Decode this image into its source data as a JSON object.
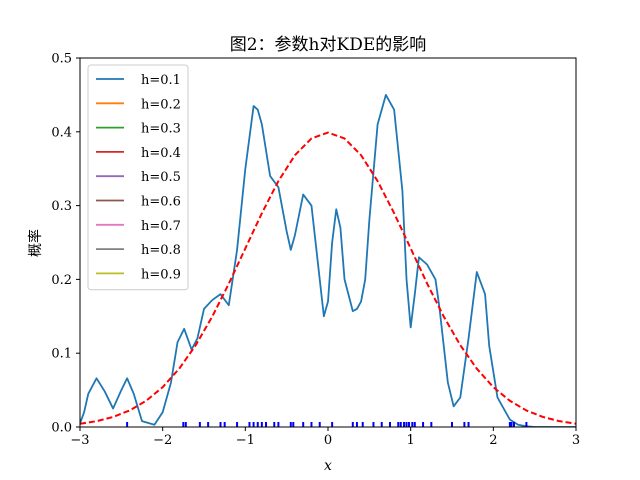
{
  "chart_data": {
    "type": "line",
    "title": "图2：参数h对KDE的影响",
    "xlabel": "x",
    "ylabel": "概率",
    "xlim": [
      -3,
      3
    ],
    "ylim": [
      0,
      0.5
    ],
    "xticks": [
      "−3",
      "−2",
      "−1",
      "0",
      "1",
      "2",
      "3"
    ],
    "yticks": [
      "0.0",
      "0.1",
      "0.2",
      "0.3",
      "0.4",
      "0.5"
    ],
    "grid": false,
    "legend_position": "top-left",
    "series": [
      {
        "name": "h=0.1",
        "color": "#1f77b4",
        "style": "solid",
        "x": [
          -3.0,
          -2.95,
          -2.9,
          -2.8,
          -2.7,
          -2.6,
          -2.5,
          -2.43,
          -2.35,
          -2.25,
          -2.1,
          -2.0,
          -1.9,
          -1.82,
          -1.74,
          -1.65,
          -1.58,
          -1.5,
          -1.4,
          -1.3,
          -1.2,
          -1.1,
          -1.0,
          -0.9,
          -0.85,
          -0.8,
          -0.7,
          -0.6,
          -0.5,
          -0.45,
          -0.4,
          -0.3,
          -0.2,
          -0.1,
          -0.05,
          0.0,
          0.05,
          0.1,
          0.15,
          0.2,
          0.3,
          0.35,
          0.4,
          0.45,
          0.5,
          0.6,
          0.7,
          0.8,
          0.9,
          0.95,
          1.0,
          1.05,
          1.1,
          1.2,
          1.3,
          1.35,
          1.45,
          1.52,
          1.6,
          1.7,
          1.8,
          1.9,
          1.95,
          2.05,
          2.2,
          2.3,
          2.4,
          2.5,
          2.6,
          2.7,
          2.8,
          2.9,
          3.0
        ],
        "y": [
          0.005,
          0.02,
          0.045,
          0.066,
          0.048,
          0.025,
          0.05,
          0.066,
          0.045,
          0.008,
          0.003,
          0.02,
          0.06,
          0.115,
          0.133,
          0.105,
          0.12,
          0.16,
          0.172,
          0.18,
          0.165,
          0.24,
          0.35,
          0.435,
          0.43,
          0.41,
          0.34,
          0.325,
          0.265,
          0.24,
          0.26,
          0.315,
          0.3,
          0.2,
          0.15,
          0.17,
          0.25,
          0.295,
          0.27,
          0.2,
          0.157,
          0.16,
          0.17,
          0.2,
          0.28,
          0.41,
          0.45,
          0.43,
          0.32,
          0.2,
          0.135,
          0.18,
          0.23,
          0.22,
          0.2,
          0.16,
          0.06,
          0.028,
          0.04,
          0.12,
          0.21,
          0.18,
          0.11,
          0.04,
          0.01,
          0.003,
          0.001,
          0.0,
          0.0,
          0.0,
          0.0,
          0.0,
          0.0
        ]
      },
      {
        "name": "h=0.2",
        "color": "#ff7f0e",
        "style": "solid",
        "x": [],
        "y": []
      },
      {
        "name": "h=0.3",
        "color": "#2ca02c",
        "style": "solid",
        "x": [],
        "y": []
      },
      {
        "name": "h=0.4",
        "color": "#d62728",
        "style": "solid",
        "x": [],
        "y": []
      },
      {
        "name": "h=0.5",
        "color": "#9467bd",
        "style": "solid",
        "x": [],
        "y": []
      },
      {
        "name": "h=0.6",
        "color": "#8c564b",
        "style": "solid",
        "x": [],
        "y": []
      },
      {
        "name": "h=0.7",
        "color": "#e377c2",
        "style": "solid",
        "x": [],
        "y": []
      },
      {
        "name": "h=0.8",
        "color": "#7f7f7f",
        "style": "solid",
        "x": [],
        "y": []
      },
      {
        "name": "h=0.9",
        "color": "#bcbd22",
        "style": "solid",
        "x": [],
        "y": []
      }
    ],
    "reference_curve": {
      "color": "#ff0000",
      "style": "dashed",
      "x": [
        -3.0,
        -2.8,
        -2.6,
        -2.4,
        -2.2,
        -2.0,
        -1.8,
        -1.6,
        -1.4,
        -1.2,
        -1.0,
        -0.8,
        -0.6,
        -0.4,
        -0.2,
        0.0,
        0.2,
        0.4,
        0.6,
        0.8,
        1.0,
        1.2,
        1.4,
        1.6,
        1.8,
        2.0,
        2.2,
        2.4,
        2.6,
        2.8,
        3.0
      ],
      "y": [
        0.0044,
        0.0079,
        0.0136,
        0.0224,
        0.0355,
        0.054,
        0.079,
        0.1109,
        0.1497,
        0.1942,
        0.242,
        0.2897,
        0.3332,
        0.3683,
        0.391,
        0.3989,
        0.391,
        0.3683,
        0.3332,
        0.2897,
        0.242,
        0.1942,
        0.1497,
        0.1109,
        0.079,
        0.054,
        0.0355,
        0.0224,
        0.0136,
        0.0079,
        0.0044
      ]
    },
    "rug": {
      "color": "#0000ff",
      "x": [
        -2.43,
        -1.75,
        -1.72,
        -1.55,
        -1.45,
        -1.3,
        -1.25,
        -1.1,
        -0.95,
        -0.9,
        -0.85,
        -0.8,
        -0.75,
        -0.65,
        -0.6,
        -0.45,
        -0.42,
        -0.3,
        -0.2,
        -0.1,
        0.05,
        0.3,
        0.35,
        0.42,
        0.55,
        0.65,
        0.75,
        0.85,
        0.88,
        0.92,
        0.95,
        0.98,
        1.02,
        1.05,
        1.15,
        1.25,
        1.5,
        1.65,
        1.7,
        2.2,
        2.22,
        2.25,
        2.4
      ]
    }
  }
}
